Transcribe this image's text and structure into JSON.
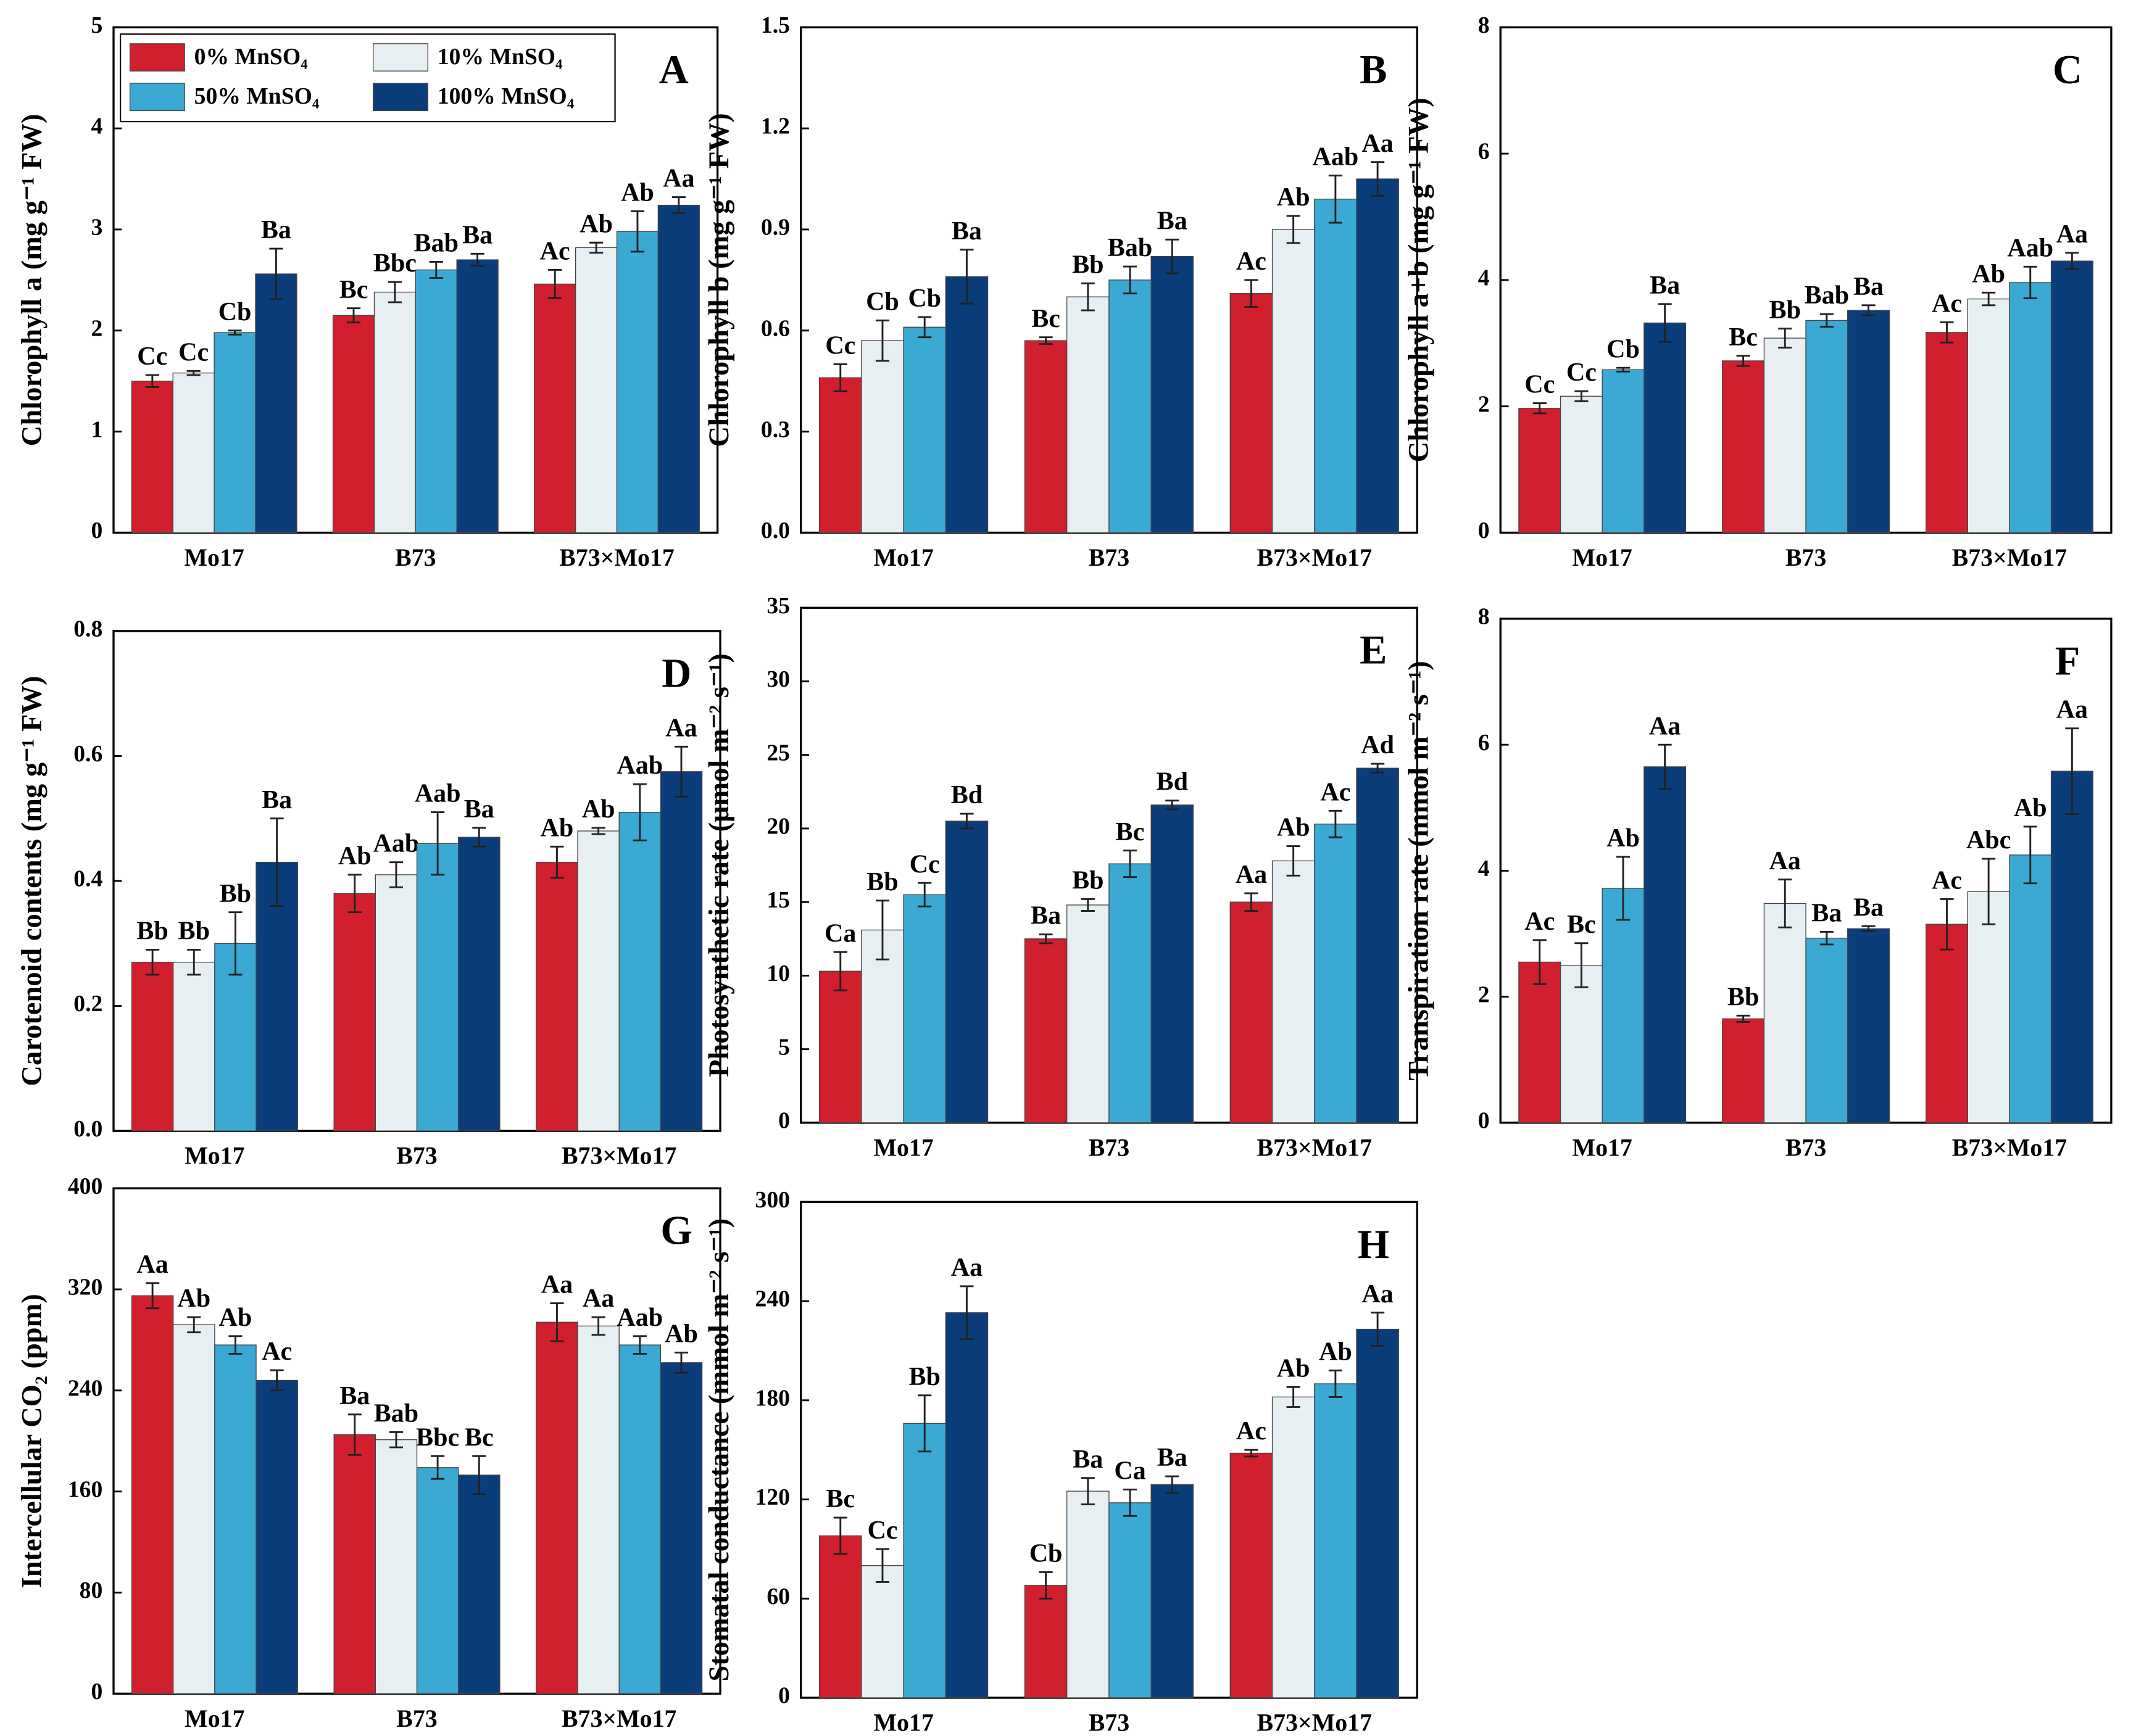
{
  "chart_data": [
    {
      "type": "bar",
      "panel": "A",
      "ylabel": "Chlorophyll a (mg g⁻¹ FW)",
      "categories": [
        "Mo17",
        "B73",
        "B73×Mo17"
      ],
      "ylim": [
        0,
        5
      ],
      "yticks": [
        0,
        1,
        2,
        3,
        4,
        5
      ],
      "legend": "upper left",
      "series": [
        {
          "name": "0% MnSO₄",
          "color": "#d11f2e",
          "values": [
            1.5,
            2.15,
            2.46
          ],
          "errors": [
            0.06,
            0.07,
            0.14
          ],
          "significance": [
            "Cc",
            "Bc",
            "Ac"
          ]
        },
        {
          "name": "10% MnSO₄",
          "color": "#e8eff3",
          "values": [
            1.58,
            2.38,
            2.82
          ],
          "errors": [
            0.02,
            0.1,
            0.05
          ],
          "significance": [
            "Cc",
            "Bbc",
            "Ab"
          ]
        },
        {
          "name": "50% MnSO₄",
          "color": "#3aa9d4",
          "values": [
            1.98,
            2.6,
            2.98
          ],
          "errors": [
            0.02,
            0.08,
            0.2
          ],
          "significance": [
            "Cb",
            "Bab",
            "Ab"
          ]
        },
        {
          "name": "100% MnSO₄",
          "color": "#0a3d7a",
          "values": [
            2.56,
            2.7,
            3.24
          ],
          "errors": [
            0.25,
            0.06,
            0.08
          ],
          "significance": [
            "Ba",
            "Ba",
            "Aa"
          ]
        }
      ]
    },
    {
      "type": "bar",
      "panel": "B",
      "ylabel": "Chlorophyll b (mg g⁻¹ FW)",
      "categories": [
        "Mo17",
        "B73",
        "B73×Mo17"
      ],
      "ylim": [
        0,
        1.5
      ],
      "yticks": [
        {
          "value": 0,
          "label": "0.0"
        },
        0.3,
        0.6,
        0.9,
        1.2,
        1.5
      ],
      "series": [
        {
          "color": "#d11f2e",
          "values": [
            0.46,
            0.57,
            0.71
          ],
          "errors": [
            0.04,
            0.01,
            0.04
          ],
          "significance": [
            "Cc",
            "Bc",
            "Ac"
          ]
        },
        {
          "color": "#e8eff3",
          "values": [
            0.57,
            0.7,
            0.9
          ],
          "errors": [
            0.06,
            0.04,
            0.04
          ],
          "significance": [
            "Cb",
            "Bb",
            "Ab"
          ]
        },
        {
          "color": "#3aa9d4",
          "values": [
            0.61,
            0.75,
            0.99
          ],
          "errors": [
            0.03,
            0.04,
            0.07
          ],
          "significance": [
            "Cb",
            "Bab",
            "Aab"
          ]
        },
        {
          "color": "#0a3d7a",
          "values": [
            0.76,
            0.82,
            1.05
          ],
          "errors": [
            0.08,
            0.05,
            0.05
          ],
          "significance": [
            "Ba",
            "Ba",
            "Aa"
          ]
        }
      ]
    },
    {
      "type": "bar",
      "panel": "C",
      "ylabel": "Chlorophyll a+b (mg g⁻¹ FW)",
      "categories": [
        "Mo17",
        "B73",
        "B73×Mo17"
      ],
      "ylim": [
        0,
        8
      ],
      "yticks": [
        0,
        2,
        4,
        6,
        8
      ],
      "series": [
        {
          "color": "#d11f2e",
          "values": [
            1.97,
            2.72,
            3.17
          ],
          "errors": [
            0.08,
            0.08,
            0.16
          ],
          "significance": [
            "Cc",
            "Bc",
            "Ac"
          ]
        },
        {
          "color": "#e8eff3",
          "values": [
            2.16,
            3.08,
            3.7
          ],
          "errors": [
            0.08,
            0.15,
            0.1
          ],
          "significance": [
            "Cc",
            "Bb",
            "Ab"
          ]
        },
        {
          "color": "#3aa9d4",
          "values": [
            2.58,
            3.36,
            3.96
          ],
          "errors": [
            0.03,
            0.1,
            0.25
          ],
          "significance": [
            "Cb",
            "Bab",
            "Aab"
          ]
        },
        {
          "color": "#0a3d7a",
          "values": [
            3.32,
            3.52,
            4.3
          ],
          "errors": [
            0.3,
            0.08,
            0.13
          ],
          "significance": [
            "Ba",
            "Ba",
            "Aa"
          ]
        }
      ]
    },
    {
      "type": "bar",
      "panel": "D",
      "ylabel": "Carotenoid contents (mg g⁻¹ FW)",
      "categories": [
        "Mo17",
        "B73",
        "B73×Mo17"
      ],
      "ylim": [
        0,
        0.8
      ],
      "yticks": [
        {
          "value": 0,
          "label": "0.0"
        },
        0.2,
        0.4,
        0.6,
        0.8
      ],
      "series": [
        {
          "color": "#d11f2e",
          "values": [
            0.27,
            0.38,
            0.43
          ],
          "errors": [
            0.02,
            0.03,
            0.025
          ],
          "significance": [
            "Bb",
            "Ab",
            "Ab"
          ]
        },
        {
          "color": "#e8eff3",
          "values": [
            0.27,
            0.41,
            0.48
          ],
          "errors": [
            0.02,
            0.02,
            0.005
          ],
          "significance": [
            "Bb",
            "Aab",
            "Ab"
          ]
        },
        {
          "color": "#3aa9d4",
          "values": [
            0.3,
            0.46,
            0.51
          ],
          "errors": [
            0.05,
            0.05,
            0.045
          ],
          "significance": [
            "Bb",
            "Aab",
            "Aab"
          ]
        },
        {
          "color": "#0a3d7a",
          "values": [
            0.43,
            0.47,
            0.575
          ],
          "errors": [
            0.07,
            0.015,
            0.04
          ],
          "significance": [
            "Ba",
            "Ba",
            "Aa"
          ]
        }
      ]
    },
    {
      "type": "bar",
      "panel": "E",
      "ylabel": "Photosynthetic rate (μmol m⁻² s⁻¹)",
      "categories": [
        "Mo17",
        "B73",
        "B73×Mo17"
      ],
      "ylim": [
        0,
        35
      ],
      "yticks": [
        0,
        5,
        10,
        15,
        20,
        25,
        30,
        35
      ],
      "series": [
        {
          "color": "#d11f2e",
          "values": [
            10.3,
            12.5,
            15
          ],
          "errors": [
            1.3,
            0.3,
            0.6
          ],
          "significance": [
            "Ca",
            "Ba",
            "Aa"
          ]
        },
        {
          "color": "#e8eff3",
          "values": [
            13.1,
            14.8,
            17.8
          ],
          "errors": [
            2,
            0.4,
            1
          ],
          "significance": [
            "Bb",
            "Bb",
            "Ab"
          ]
        },
        {
          "color": "#3aa9d4",
          "values": [
            15.5,
            17.6,
            20.3
          ],
          "errors": [
            0.8,
            0.9,
            0.9
          ],
          "significance": [
            "Cc",
            "Bc",
            "Ac"
          ]
        },
        {
          "color": "#0a3d7a",
          "values": [
            20.5,
            21.6,
            24.1
          ],
          "errors": [
            0.5,
            0.3,
            0.3
          ],
          "significance": [
            "Bd",
            "Bd",
            "Ad"
          ]
        }
      ]
    },
    {
      "type": "bar",
      "panel": "F",
      "ylabel": "Transpiration rate (mmol m⁻² s⁻¹)",
      "categories": [
        "Mo17",
        "B73",
        "B73×Mo17"
      ],
      "ylim": [
        0,
        8
      ],
      "yticks": [
        0,
        2,
        4,
        6,
        8
      ],
      "series": [
        {
          "color": "#d11f2e",
          "values": [
            2.55,
            1.65,
            3.15
          ],
          "errors": [
            0.35,
            0.05,
            0.4
          ],
          "significance": [
            "Ac",
            "Bb",
            "Ac"
          ]
        },
        {
          "color": "#e8eff3",
          "values": [
            2.5,
            3.48,
            3.67
          ],
          "errors": [
            0.35,
            0.38,
            0.52
          ],
          "significance": [
            "Bc",
            "Aa",
            "Abc"
          ]
        },
        {
          "color": "#3aa9d4",
          "values": [
            3.72,
            2.93,
            4.25
          ],
          "errors": [
            0.5,
            0.1,
            0.45
          ],
          "significance": [
            "Ab",
            "Ba",
            "Ab"
          ]
        },
        {
          "color": "#0a3d7a",
          "values": [
            5.65,
            3.08,
            5.58
          ],
          "errors": [
            0.35,
            0.04,
            0.68
          ],
          "significance": [
            "Aa",
            "Ba",
            "Aa"
          ]
        }
      ]
    },
    {
      "type": "bar",
      "panel": "G",
      "ylabel": "Intercellular CO₂ (ppm)",
      "categories": [
        "Mo17",
        "B73",
        "B73×Mo17"
      ],
      "ylim": [
        0,
        400
      ],
      "yticks": [
        0,
        80,
        160,
        240,
        320,
        400
      ],
      "series": [
        {
          "color": "#d11f2e",
          "values": [
            315,
            205,
            294
          ],
          "errors": [
            10,
            16,
            15
          ],
          "significance": [
            "Aa",
            "Ba",
            "Aa"
          ]
        },
        {
          "color": "#e8eff3",
          "values": [
            292,
            201,
            291
          ],
          "errors": [
            6,
            6,
            7
          ],
          "significance": [
            "Ab",
            "Bab",
            "Aa"
          ]
        },
        {
          "color": "#3aa9d4",
          "values": [
            276,
            179,
            276
          ],
          "errors": [
            7,
            9,
            7
          ],
          "significance": [
            "Ab",
            "Bbc",
            "Aab"
          ]
        },
        {
          "color": "#0a3d7a",
          "values": [
            248,
            173,
            262
          ],
          "errors": [
            8,
            15,
            8
          ],
          "significance": [
            "Ac",
            "Bc",
            "Ab"
          ]
        }
      ]
    },
    {
      "type": "bar",
      "panel": "H",
      "ylabel": "Stomatal conductance (mmol m⁻² s⁻¹)",
      "categories": [
        "Mo17",
        "B73",
        "B73×Mo17"
      ],
      "ylim": [
        0,
        300
      ],
      "yticks": [
        0,
        60,
        120,
        180,
        240,
        300
      ],
      "series": [
        {
          "color": "#d11f2e",
          "values": [
            98,
            68,
            148
          ],
          "errors": [
            11,
            8,
            2
          ],
          "significance": [
            "Bc",
            "Cb",
            "Ac"
          ]
        },
        {
          "color": "#e8eff3",
          "values": [
            80,
            125,
            182
          ],
          "errors": [
            10,
            8,
            6
          ],
          "significance": [
            "Cc",
            "Ba",
            "Ab"
          ]
        },
        {
          "color": "#3aa9d4",
          "values": [
            166,
            118,
            190
          ],
          "errors": [
            17,
            8,
            8
          ],
          "significance": [
            "Bb",
            "Ca",
            "Ab"
          ]
        },
        {
          "color": "#0a3d7a",
          "values": [
            233,
            129,
            223
          ],
          "errors": [
            16,
            5,
            10
          ],
          "significance": [
            "Aa",
            "Ba",
            "Aa"
          ]
        }
      ]
    }
  ]
}
